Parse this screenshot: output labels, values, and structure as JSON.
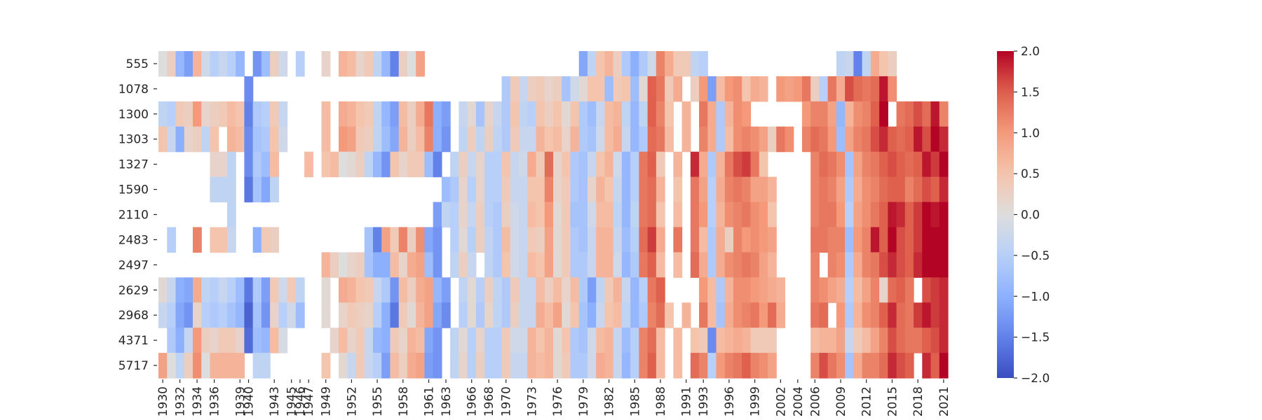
{
  "chart_data": {
    "type": "heatmap",
    "title": "",
    "xlabel": "",
    "ylabel": "",
    "colormap": "coolwarm",
    "vmin": -2.0,
    "vmax": 2.0,
    "colorbar_ticks": [
      "2.0",
      "1.5",
      "1.0",
      "0.5",
      "0.0",
      "−0.5",
      "−1.0",
      "−1.5",
      "−2.0"
    ],
    "x_years": [
      1930,
      1931,
      1932,
      1933,
      1934,
      1935,
      1936,
      1937,
      1938,
      1939,
      1940,
      1941,
      1942,
      1943,
      1944,
      1945,
      1946,
      1947,
      1948,
      1949,
      1950,
      1951,
      1952,
      1953,
      1954,
      1955,
      1956,
      1957,
      1958,
      1959,
      1960,
      1961,
      1962,
      1963,
      1964,
      1965,
      1966,
      1967,
      1968,
      1969,
      1970,
      1971,
      1972,
      1973,
      1974,
      1975,
      1976,
      1977,
      1978,
      1979,
      1980,
      1981,
      1982,
      1983,
      1984,
      1985,
      1986,
      1987,
      1988,
      1989,
      1990,
      1991,
      1992,
      1993,
      1994,
      1995,
      1996,
      1997,
      1998,
      1999,
      2000,
      2001,
      2002,
      2003,
      2004,
      2005,
      2006,
      2007,
      2008,
      2009,
      2010,
      2011,
      2012,
      2013,
      2014,
      2015,
      2016,
      2017,
      2018,
      2019,
      2020,
      2021
    ],
    "x_tick_labels": [
      "1930",
      "1932",
      "1934",
      "1936",
      "1939",
      "1940",
      "1943",
      "1945",
      "1946",
      "1947",
      "1949",
      "1952",
      "1955",
      "1958",
      "1961",
      "1963",
      "1966",
      "1968",
      "1970",
      "1973",
      "1976",
      "1979",
      "1982",
      "1985",
      "1988",
      "1991",
      "1993",
      "1996",
      "1999",
      "2002",
      "2004",
      "2006",
      "2009",
      "2012",
      "2015",
      "2018",
      "2021"
    ],
    "y_labels": [
      "555",
      "1078",
      "1300",
      "1303",
      "1327",
      "1590",
      "2110",
      "2483",
      "2497",
      "2629",
      "2968",
      "4371",
      "5717"
    ],
    "value_rows": [
      "1930:0,0.3,-0.9,-1.2,0.7,-0.2,-0.5,-0.3,-0.5,-0.9,null,-1.3,-0.8,0.3,-0.2,null,-0.5,null,null,0.2,null,0.7,0.6,0.2,0.4,-0.4,-0.9,-1.5,0.3,0,0.9;1979:-1.1,-0.4,0.5,0.7,0.3,-0.6,-1.0,-0.6,-0.2,1.2,0.8,0.4,0.4,-0.4;1993:-0.5;2009:-0.4,-0.3,-1.5,-0.4,0.8,0.5,0.3",
      "1940:-1.4;1970:-0.6,0.4,-0.3,0.3,0.4,0.2,0.3,-0.7,-0.2,0.1,0.5,0.5,-0.8,0.4,0.5,-0.8,0.1,1.5,1.3,0.4,0.8,null,0.3,1.0,-1.2,0.6,1.0,1.1,0.5,0.8,0.7,null,1.0,0.9,1.0,1.3,0.3,-0.5,1.3,0.8,1.6,1.4,1.3,1.4,1.9,1.1",
      "1930:-0.4,-0.5,0.4,0.3,1.0,0.2,0.3,0.4,0.6,0.5,-1.5,-0.6,-0.5,0.4,-0.3,null,null,null,null,0.6,null,0.8,0.7,0.5,0.4,-0.4,-0.9,-1.2,0.6,0.3,0.8,1.3,-1.0,-1.2,null,-0.3,0.1,-0.7,0.2,-0.3,-0.6,0.5,-0.4,-0.5,0.5,0.3,0.5,0.1,0.5,-0.6,-0.8,-0.3,0.6,0.7,-0.4,-0.9,-0.4,1.5,1.2,0.5,null,0.7,null,1.3,0.8,-0.6,0.7,1.1,1.0,null,null,null,null,null,null,1.0,1.2,1.2,0.9,-0.9,0.7,1.1,1.2,1.5,2.0,null,1.3,1.4,1.6,1.4,1.9,1.2",
      "1930:0.5,-0.3,-1.0,0.2,0.3,-0.4,0.5,null,0.7,0.6,-1.4,-0.7,-0.6,0.5,-0.2,null,null,null,null,0.6,null,1.0,0.9,0.4,0.3,-0.4,-0.8,-1.1,0.7,0.3,0.6,1.2,-1.0,-1.3,null,-0.4,0.3,-0.4,0.3,-0.4,-0.6,0.4,-0.3,-0.3,0.7,0.5,0.6,0.2,0.7,-0.6,-0.7,-0.2,0.6,0.8,-0.3,-0.9,-0.6,1.4,1.3,0.6,null,0.7,null,1.2,0.8,-0.6,0.6,1.1,1.2,1.1,0.9,0.3,1.3,1.1,null,1.2,1.4,1.3,1.0,-0.8,0.9,1.2,1.3,1.6,1.8,1.5,1.4,1.5,1.9,1.6,2.0,1.8",
      "1936:0.2,0.2,-0.4;1940:-1.4,-0.6,-0.8,0.6;1947:0.6;1949:0.5,0.6,0.0,0.1,0.3,-0.4,-0.9,-1.3,0.5,0.2,0.4,0.4,-0.8,-1.5,null,-0.4,0.3,-0.3,0.2,-0.5,-0.5,0.5,-0.3,-0.2,0.8,0.4,1.4,0.2,0.5,-0.6,-0.7,-0.3,0.5,0.7,-0.2,-0.9,-0.5,1.3,1.5,0.4,null,0.7,null,1.8,0.8,-0.6,0.7,1.3,1.6,1.7,1.3,0.5;2006:1.2,1.4,1.3,1.1,-0.7,0.9,1.2,1.3,1.5,1.6,1.5,1.4,1.5,1.9,1.7,2.0,1.8",
      "1936:-0.4,-0.4,-0.4;1940:-1.6,-0.7,-1.1,-0.4;1963:-0.8,-0.6,0.2,-0.5,0.2,-0.5,-0.5,0.4,-0.3,-0.3,0.5,0.5,1.2,0.2,0.4,-0.6,-0.7,0.2,0.7,0.5,-0.3,-0.9,-0.5,1.3,1.4,0.7,null,0.5,null,1.3,0.9,-0.5,0.8,1.2,1.3,1.2,0.9,0.9,0.7;2006:1.2,1.3,1.2,0.9,-0.6,0.8,1.1,1.2,1.4,1.5,1.5,1.2,1.4,1.6,1.5,1.8,1.7",
      "1938:-0.4;1962:-1.2,-0.4,-0.5,0.2,-0.3,0.3,-0.5,-0.6,0.3,-0.2,-0.3,0.6,0.5,1.0,0.1,0.4,-0.7,-0.7,-0.2,0.6,0.6,-0.4,-0.9,-0.4,1.3,1.4,0.5,null,0.6,null,1.3,1.0,-0.5,0.7,1.1,1.2,1.3,1.1,1.0,0.5;2006:1.2,1.3,1.3,1.0,-0.5,0.9,1.1,1.3,1.5,1.9,1.8,1.5,1.7,2.0,1.9,2.0,1.7",
      "1930:null,-0.5;1934:1.2;1936:0.5,0.5,-0.3;1940:null,-1.0,0.4,0.3;1954:-0.7,-1.5,0.9,0.4,1.2,0.3,1.1,-1.1,-1.3,null,-0.5,0.1,-0.5,0.3,-0.4,-0.6,0.6,-0.2,-0.3,0.4,0.3,0.9,0.1,0.4,-0.6,-0.7,-0.3,0.7,0.7,-0.3,-0.8,-0.5,1.4,1.7,0.8,null,1.3,null,1.3,0.6,-0.6,0.8,0.3,1.2,1.0,1.1,1.0,0.9;2006:1.3,1.3,1.2,1.2,-0.8,1.0,1.2,1.9,1.5,2.0,1.6,1.5,1.7,2.0,2.0,2.0,1.8",
      "1949:0.7,0.3,0.0,0.2,0.3,-0.7,-1.0,-1.0,0.6,0.2,0.8,0.9,-0.8,-1.3,null,-0.4,0.3,-0.3,null,-0.4,-0.6,0.5,-0.2,-0.3,0.6,0.5,0.9,0.1,0.4,-0.6,-0.6,-0.3,0.7,0.7,-0.2,-0.9,-0.6,1.3,1.5,0.6,null,0.6,null,1.4,0.8,-0.6,0.8,1.1,1.2,1.3,1.2,0.9,0.7;2006:1.2,null,1.2,1.1,-0.6,0.8,1.2,1.3,1.6,1.8,1.6,1.5,1.8,2.0,2.0,2.0,1.6",
      "1930:0.1,-0.3,-1.0,-1.1,0.8,-0.4,-0.5,-0.3,-0.5,-0.8,-1.6,-0.6,-1.2,0.4,-0.2,0.4,-0.4,null,null,0.1,null,0.8,0.7,0.5,0.4,-0.3,-0.6,-1.3,0.6,0.3,0.8,0.9,-0.9,-1.2,null,-0.4,0.1,-0.5,0.3,-0.4,-0.6,0.4,-0.3,-0.3,0.6,0.3,0.6,0.2,0.6,-0.6,-1.2,-0.4,0.4,0.7,-0.3,-0.9,-0.5,1.3,1.5,null,null,null,null,1.0,0.6,-0.6,0.7,1.1,1.1,1.0,0.9,0.8,0.7;2006:1.2,1.1,0.9,0.8,-0.5,0.6,0.9,1.2,0.2,1.4,1.5,1.3,null,1.6,1.7,1.8,1.3",
      "1930:-0.3,-0.5,-1.1,-1.3,0.2,-0.5,-0.6,-0.5,-0.7,-0.9,-1.8,-0.7,-1.3,0.2,-0.5,-0.2,-0.8,null,null,0.1,null,0.2,0.4,0.3,0.2,-0.5,-1.0,-1.6,0.4,0.1,0.7,0.9,-1.1,-1.4,null,-0.5,0.1,-0.6,0.2,-0.4,-0.6,0.3,-0.3,-0.3,0.8,0.6,0.9,0.1,0.5,-0.7,-1.0,-0.3,0.5,0.6,-0.4,-0.9,-0.6,1.2,1.4,0.5,null,0.7,null,1.3,0.6,-0.7,0.8,1.1,1.2,1.3,1.0,1.4,0.8;2006:1.3,1.4,null,1.0,-0.6,0.7,1.1,1.2,1.5,1.8,1.4,1.3,1.7,1.9,1.7,1.8,1.5",
      "1930:null,-0.6,-1.0,-0.3,1.0,0.3,0.2,0.4,0.4,0.2,-1.7,-0.8,-0.9,0.6,-0.1;1949:null,0.2,0.6,0.2,0.4,-0.3,-0.9,-1.0,0.4,0.2,0.7,0.6,-1.1,-1.3,null,-0.4,0.1,-0.5,0.2,-0.5,-0.5,0.4,-0.2,-0.2,0.7,0.5,0.7,0.1,0.5,-0.6,-0.7,-0.2,0.6,0.7,-0.3,-0.8,-0.5,1.2,1.4,0.6,null,0.6,null,0.5,0.4,-1.4,0.6,0.7,0.8,0.7,0.4,0.4,0.4;2006:0.6,0.7,0.7,0.9,-0.3,0.4,0.6,0.9,1.2,1.6,1.4,1.3,1.3,1.5,1.6,1.8,1.3",
      "1930:0.9,0.0,-0.4,0.3,1.1,0.0,0.7,0.7,0.7,0.7,null,-0.4,-0.4;1949:0.5,null,0.1,-0.3,0.4,-0.3,-0.5,-1.2,0.6,0.3,0.8,0.9,-1.2,-1.3,null,-0.4,0.2,-0.5,0.3,-0.5,-0.5,0.4,-0.3,-0.3,0.7,0.6,0.7,0.1,0.4,-0.6,-0.6,-0.2,0.8,0.7,-0.3,-0.9,-0.5,1.2,1.5,0.6,null,0.6,null,1.4,1.2,-0.5,1.0,1.2,1.3,1.5,1.2,1.1,0.9;2006:1.2,1.6,1.3,1.1,-0.7,0.8,1.2,1.2,1.4,1.8,1.6,1.5,null,1.8,1.5,2.0,1.6"
    ]
  }
}
